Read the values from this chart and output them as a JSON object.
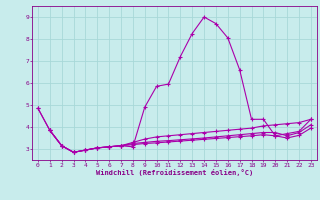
{
  "xlabel": "Windchill (Refroidissement éolien,°C)",
  "background_color": "#c8ecec",
  "grid_color": "#a8d8d8",
  "line_color": "#aa00aa",
  "xlim": [
    -0.5,
    23.5
  ],
  "ylim": [
    2.5,
    9.5
  ],
  "xticks": [
    0,
    1,
    2,
    3,
    4,
    5,
    6,
    7,
    8,
    9,
    10,
    11,
    12,
    13,
    14,
    15,
    16,
    17,
    18,
    19,
    20,
    21,
    22,
    23
  ],
  "yticks": [
    3,
    4,
    5,
    6,
    7,
    8,
    9
  ],
  "series1": [
    [
      0,
      4.85
    ],
    [
      1,
      3.85
    ],
    [
      2,
      3.15
    ],
    [
      3,
      2.85
    ],
    [
      4,
      2.95
    ],
    [
      5,
      3.05
    ],
    [
      6,
      3.1
    ],
    [
      7,
      3.15
    ],
    [
      8,
      3.1
    ],
    [
      9,
      4.9
    ],
    [
      10,
      5.85
    ],
    [
      11,
      5.95
    ],
    [
      12,
      7.2
    ],
    [
      13,
      8.25
    ],
    [
      14,
      9.0
    ],
    [
      15,
      8.7
    ],
    [
      16,
      8.05
    ],
    [
      17,
      6.6
    ],
    [
      18,
      4.35
    ],
    [
      19,
      4.35
    ],
    [
      20,
      3.6
    ],
    [
      21,
      3.7
    ],
    [
      22,
      3.8
    ],
    [
      23,
      4.35
    ]
  ],
  "series2": [
    [
      0,
      4.85
    ],
    [
      1,
      3.85
    ],
    [
      2,
      3.15
    ],
    [
      3,
      2.85
    ],
    [
      4,
      2.95
    ],
    [
      5,
      3.05
    ],
    [
      6,
      3.1
    ],
    [
      7,
      3.15
    ],
    [
      8,
      3.3
    ],
    [
      9,
      3.45
    ],
    [
      10,
      3.55
    ],
    [
      11,
      3.6
    ],
    [
      12,
      3.65
    ],
    [
      13,
      3.7
    ],
    [
      14,
      3.75
    ],
    [
      15,
      3.8
    ],
    [
      16,
      3.85
    ],
    [
      17,
      3.9
    ],
    [
      18,
      3.95
    ],
    [
      19,
      4.05
    ],
    [
      20,
      4.1
    ],
    [
      21,
      4.15
    ],
    [
      22,
      4.2
    ],
    [
      23,
      4.35
    ]
  ],
  "series3": [
    [
      1,
      3.85
    ],
    [
      2,
      3.15
    ],
    [
      3,
      2.85
    ],
    [
      4,
      2.95
    ],
    [
      5,
      3.05
    ],
    [
      6,
      3.1
    ],
    [
      7,
      3.15
    ],
    [
      8,
      3.25
    ],
    [
      9,
      3.3
    ],
    [
      10,
      3.35
    ],
    [
      11,
      3.38
    ],
    [
      12,
      3.42
    ],
    [
      13,
      3.46
    ],
    [
      14,
      3.5
    ],
    [
      15,
      3.55
    ],
    [
      16,
      3.6
    ],
    [
      17,
      3.65
    ],
    [
      18,
      3.7
    ],
    [
      19,
      3.75
    ],
    [
      20,
      3.75
    ],
    [
      21,
      3.6
    ],
    [
      22,
      3.75
    ],
    [
      23,
      4.1
    ]
  ],
  "series4": [
    [
      1,
      3.85
    ],
    [
      2,
      3.15
    ],
    [
      3,
      2.85
    ],
    [
      4,
      2.95
    ],
    [
      5,
      3.05
    ],
    [
      6,
      3.1
    ],
    [
      7,
      3.15
    ],
    [
      8,
      3.2
    ],
    [
      9,
      3.25
    ],
    [
      10,
      3.28
    ],
    [
      11,
      3.32
    ],
    [
      12,
      3.36
    ],
    [
      13,
      3.4
    ],
    [
      14,
      3.44
    ],
    [
      15,
      3.48
    ],
    [
      16,
      3.52
    ],
    [
      17,
      3.56
    ],
    [
      18,
      3.6
    ],
    [
      19,
      3.65
    ],
    [
      20,
      3.6
    ],
    [
      21,
      3.5
    ],
    [
      22,
      3.62
    ],
    [
      23,
      3.95
    ]
  ]
}
